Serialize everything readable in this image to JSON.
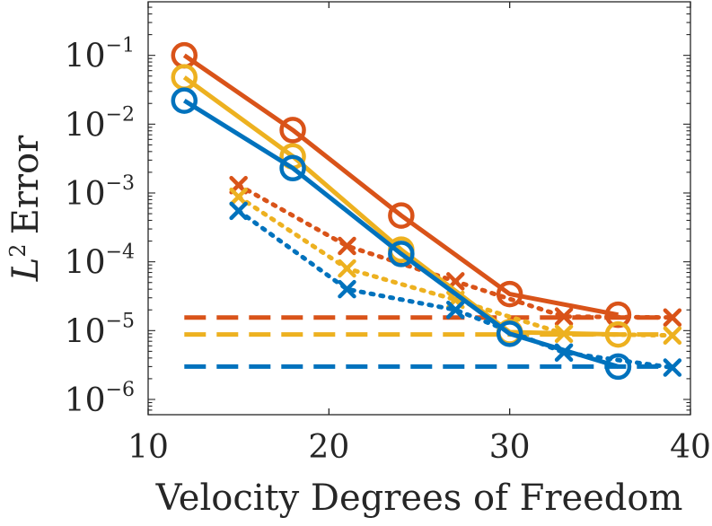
{
  "chart_data": {
    "type": "line",
    "yscale": "log",
    "xlabel": "Velocity Degrees of Freedom",
    "ylabel": {
      "base": "L",
      "sup": "2",
      "rest": "Error"
    },
    "xlim": [
      10,
      40
    ],
    "ylim": [
      6e-07,
      0.6
    ],
    "xticks": [
      {
        "value": 10,
        "label": "10"
      },
      {
        "value": 20,
        "label": "20"
      },
      {
        "value": 30,
        "label": "30"
      },
      {
        "value": 40,
        "label": "40"
      }
    ],
    "yticks": [
      {
        "value": 1e-06,
        "base": "10",
        "exp": "−6"
      },
      {
        "value": 1e-05,
        "base": "10",
        "exp": "−5"
      },
      {
        "value": 0.0001,
        "base": "10",
        "exp": "−4"
      },
      {
        "value": 0.001,
        "base": "10",
        "exp": "−3"
      },
      {
        "value": 0.01,
        "base": "10",
        "exp": "−2"
      },
      {
        "value": 0.1,
        "base": "10",
        "exp": "−1"
      }
    ],
    "series": [
      {
        "name": "orange-circle-solid",
        "color": "#D95319",
        "marker": "circle",
        "line": "solid",
        "x": [
          12,
          18,
          24,
          30,
          36
        ],
        "y": [
          0.1,
          0.0082,
          0.00047,
          3.4e-05,
          1.7e-05
        ]
      },
      {
        "name": "yellow-circle-solid",
        "color": "#EDB120",
        "marker": "circle",
        "line": "solid",
        "x": [
          12,
          18,
          24,
          30,
          36
        ],
        "y": [
          0.048,
          0.0034,
          0.00015,
          9.5e-06,
          8.8e-06
        ]
      },
      {
        "name": "blue-circle-solid",
        "color": "#0072BD",
        "marker": "circle",
        "line": "solid",
        "x": [
          12,
          18,
          24,
          30,
          36
        ],
        "y": [
          0.022,
          0.0023,
          0.00013,
          9e-06,
          3e-06
        ]
      },
      {
        "name": "orange-x-dotted",
        "color": "#D95319",
        "marker": "x",
        "line": "dotted",
        "x": [
          15,
          21,
          27,
          33,
          39
        ],
        "y": [
          0.0013,
          0.00017,
          5.2e-05,
          1.6e-05,
          1.55e-05
        ]
      },
      {
        "name": "yellow-x-dotted",
        "color": "#EDB120",
        "marker": "x",
        "line": "dotted",
        "x": [
          15,
          21,
          27,
          33,
          39
        ],
        "y": [
          0.00088,
          8e-05,
          2.8e-05,
          9e-06,
          8.5e-06
        ]
      },
      {
        "name": "blue-x-dotted",
        "color": "#0072BD",
        "marker": "x",
        "line": "dotted",
        "x": [
          15,
          21,
          27,
          33,
          39
        ],
        "y": [
          0.00055,
          4e-05,
          2e-05,
          4.8e-06,
          2.9e-06
        ]
      },
      {
        "name": "orange-dashed-reference",
        "color": "#D95319",
        "marker": "none",
        "line": "dashed",
        "x": [
          12,
          39
        ],
        "y": [
          1.55e-05,
          1.55e-05
        ]
      },
      {
        "name": "yellow-dashed-reference",
        "color": "#EDB120",
        "marker": "none",
        "line": "dashed",
        "x": [
          12,
          39
        ],
        "y": [
          8.8e-06,
          8.8e-06
        ]
      },
      {
        "name": "blue-dashed-reference",
        "color": "#0072BD",
        "marker": "none",
        "line": "dashed",
        "x": [
          12,
          39
        ],
        "y": [
          3e-06,
          3e-06
        ]
      }
    ]
  }
}
